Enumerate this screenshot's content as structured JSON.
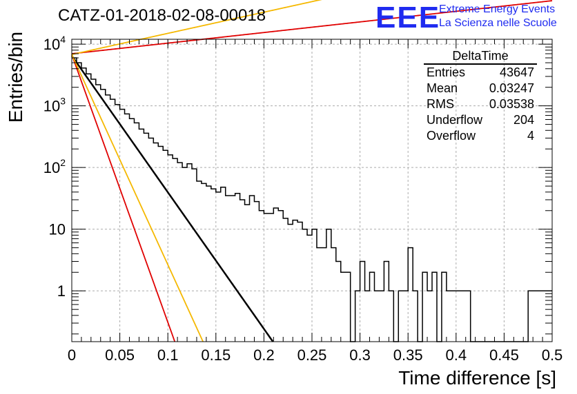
{
  "header": {
    "title": "CATZ-01-2018-02-08-00018",
    "logo": "EEE",
    "logo_line1": "Extreme Energy Events",
    "logo_line2": "La Scienza nelle Scuole"
  },
  "stats_box": {
    "title": "DeltaTime",
    "rows": [
      {
        "label": "Entries",
        "value": "43647"
      },
      {
        "label": "Mean",
        "value": "0.03247"
      },
      {
        "label": "RMS",
        "value": "0.03538"
      },
      {
        "label": "Underflow",
        "value": "204"
      },
      {
        "label": "Overflow",
        "value": "4"
      }
    ]
  },
  "chart_data": {
    "type": "line",
    "title": "CATZ-01-2018-02-08-00018",
    "xlabel": "Time difference [s]",
    "ylabel": "Entries/bin",
    "xlim": [
      0,
      0.5
    ],
    "ylim": [
      0.15,
      12000
    ],
    "yscale": "log",
    "grid": true,
    "x_ticks": [
      "0",
      "0.05",
      "0.1",
      "0.15",
      "0.2",
      "0.25",
      "0.3",
      "0.35",
      "0.4",
      "0.45",
      "0.5"
    ],
    "x_tick_values": [
      0,
      0.05,
      0.1,
      0.15,
      0.2,
      0.25,
      0.3,
      0.35,
      0.4,
      0.45,
      0.5
    ],
    "y_ticks": [
      {
        "value": 10000,
        "base": "10",
        "exp": "4"
      },
      {
        "value": 1000,
        "base": "10",
        "exp": "3"
      },
      {
        "value": 100,
        "base": "10",
        "exp": "2"
      },
      {
        "value": 10,
        "base": "10",
        "exp": ""
      },
      {
        "value": 1,
        "base": "1",
        "exp": ""
      }
    ],
    "histogram": {
      "bin_width": 0.005,
      "counts": [
        6000,
        5000,
        4100,
        3300,
        2700,
        2200,
        1850,
        1500,
        1280,
        1050,
        880,
        740,
        620,
        530,
        420,
        360,
        300,
        250,
        220,
        190,
        160,
        140,
        120,
        100,
        115,
        95,
        60,
        55,
        50,
        45,
        40,
        48,
        35,
        35,
        38,
        30,
        25,
        35,
        28,
        20,
        18,
        18,
        22,
        20,
        15,
        12,
        14,
        13,
        10,
        8,
        10,
        5,
        5,
        10,
        5,
        3,
        2,
        2,
        0.15,
        1,
        3,
        1,
        2,
        1,
        1,
        3,
        1,
        0.15,
        1,
        1,
        5,
        1,
        0.15,
        2,
        1,
        2,
        0.15,
        2,
        1,
        1,
        1,
        1,
        1,
        0.15,
        0.15,
        0.15,
        0.15,
        0.15,
        0.15,
        0.15,
        0.15,
        0.15,
        0.15,
        0.15,
        0.15,
        1,
        1,
        1,
        1,
        1
      ]
    },
    "fits": [
      {
        "color": "#000000",
        "y0": 6500,
        "slope": -51.0
      },
      {
        "color": "#e00000",
        "y0": 7000,
        "slope": 3.96
      },
      {
        "color": "#f5b800",
        "y0": 6800,
        "slope": 7.9
      },
      {
        "color": "#e00000",
        "y0": 6800,
        "slope": -100
      },
      {
        "color": "#f5b800",
        "y0": 6800,
        "slope": -78.5
      }
    ]
  }
}
